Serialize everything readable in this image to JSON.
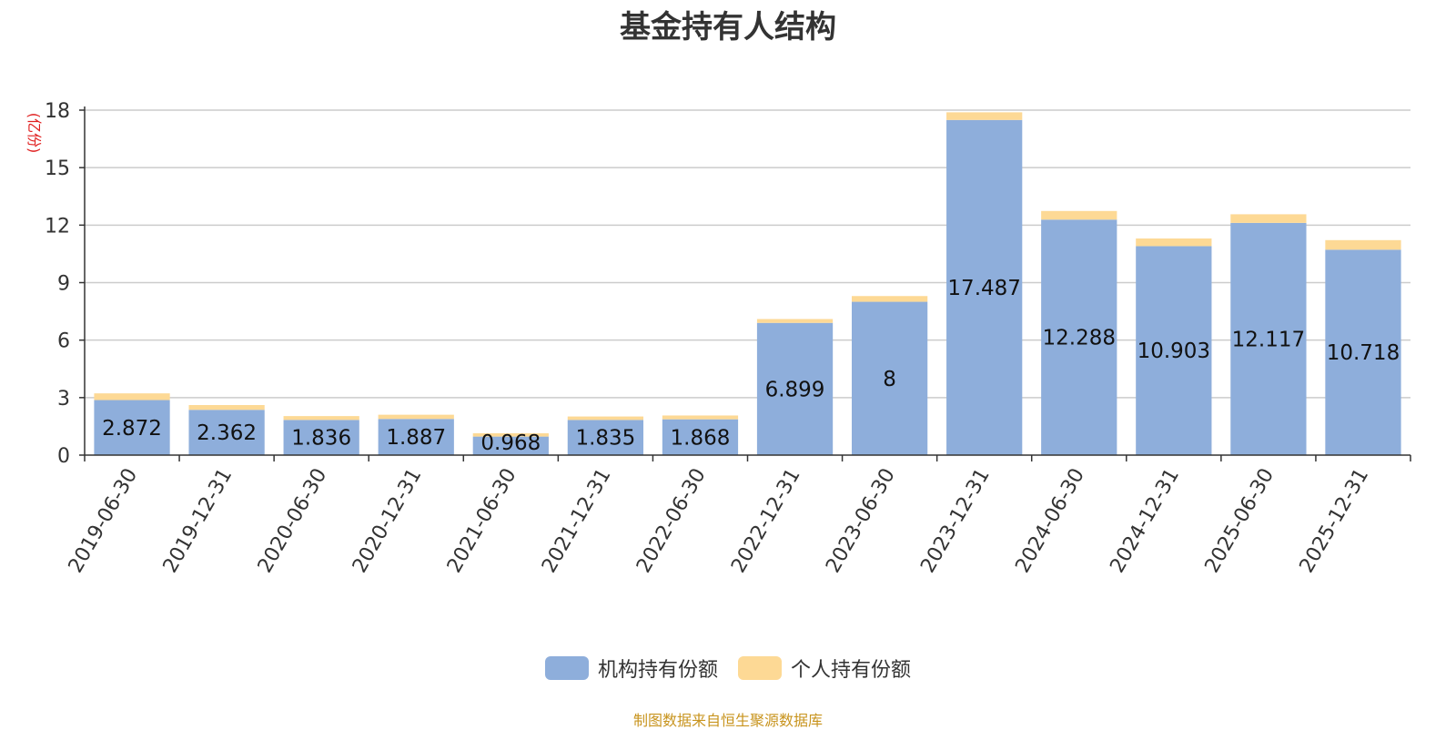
{
  "chart_data": {
    "type": "bar",
    "stacked": true,
    "title": "基金持有人结构",
    "unit_label": "(亿份)",
    "ylim": [
      0,
      18
    ],
    "yticks": [
      0,
      3,
      6,
      9,
      12,
      15,
      18
    ],
    "grid": true,
    "legend_position": "bottom",
    "categories": [
      "2019-06-30",
      "2019-12-31",
      "2020-06-30",
      "2020-12-31",
      "2021-06-30",
      "2021-12-31",
      "2022-06-30",
      "2022-12-31",
      "2023-06-30",
      "2023-12-31",
      "2024-06-30",
      "2024-12-31",
      "2025-06-30",
      "2025-12-31"
    ],
    "series": [
      {
        "name": "机构持有份额",
        "color": "#8eaedb",
        "values": [
          2.872,
          2.362,
          1.836,
          1.887,
          0.968,
          1.835,
          1.868,
          6.899,
          8,
          17.487,
          12.288,
          10.903,
          12.117,
          10.718
        ],
        "labels": [
          "2.872",
          "2.362",
          "1.836",
          "1.887",
          "0.968",
          "1.835",
          "1.868",
          "6.899",
          "8",
          "17.487",
          "12.288",
          "10.903",
          "12.117",
          "10.718"
        ]
      },
      {
        "name": "个人持有份额",
        "color": "#fdd995",
        "values": [
          0.35,
          0.25,
          0.2,
          0.22,
          0.17,
          0.18,
          0.2,
          0.2,
          0.3,
          0.4,
          0.45,
          0.4,
          0.45,
          0.5
        ]
      }
    ]
  },
  "footer": {
    "source": "制图数据来自恒生聚源数据库"
  }
}
